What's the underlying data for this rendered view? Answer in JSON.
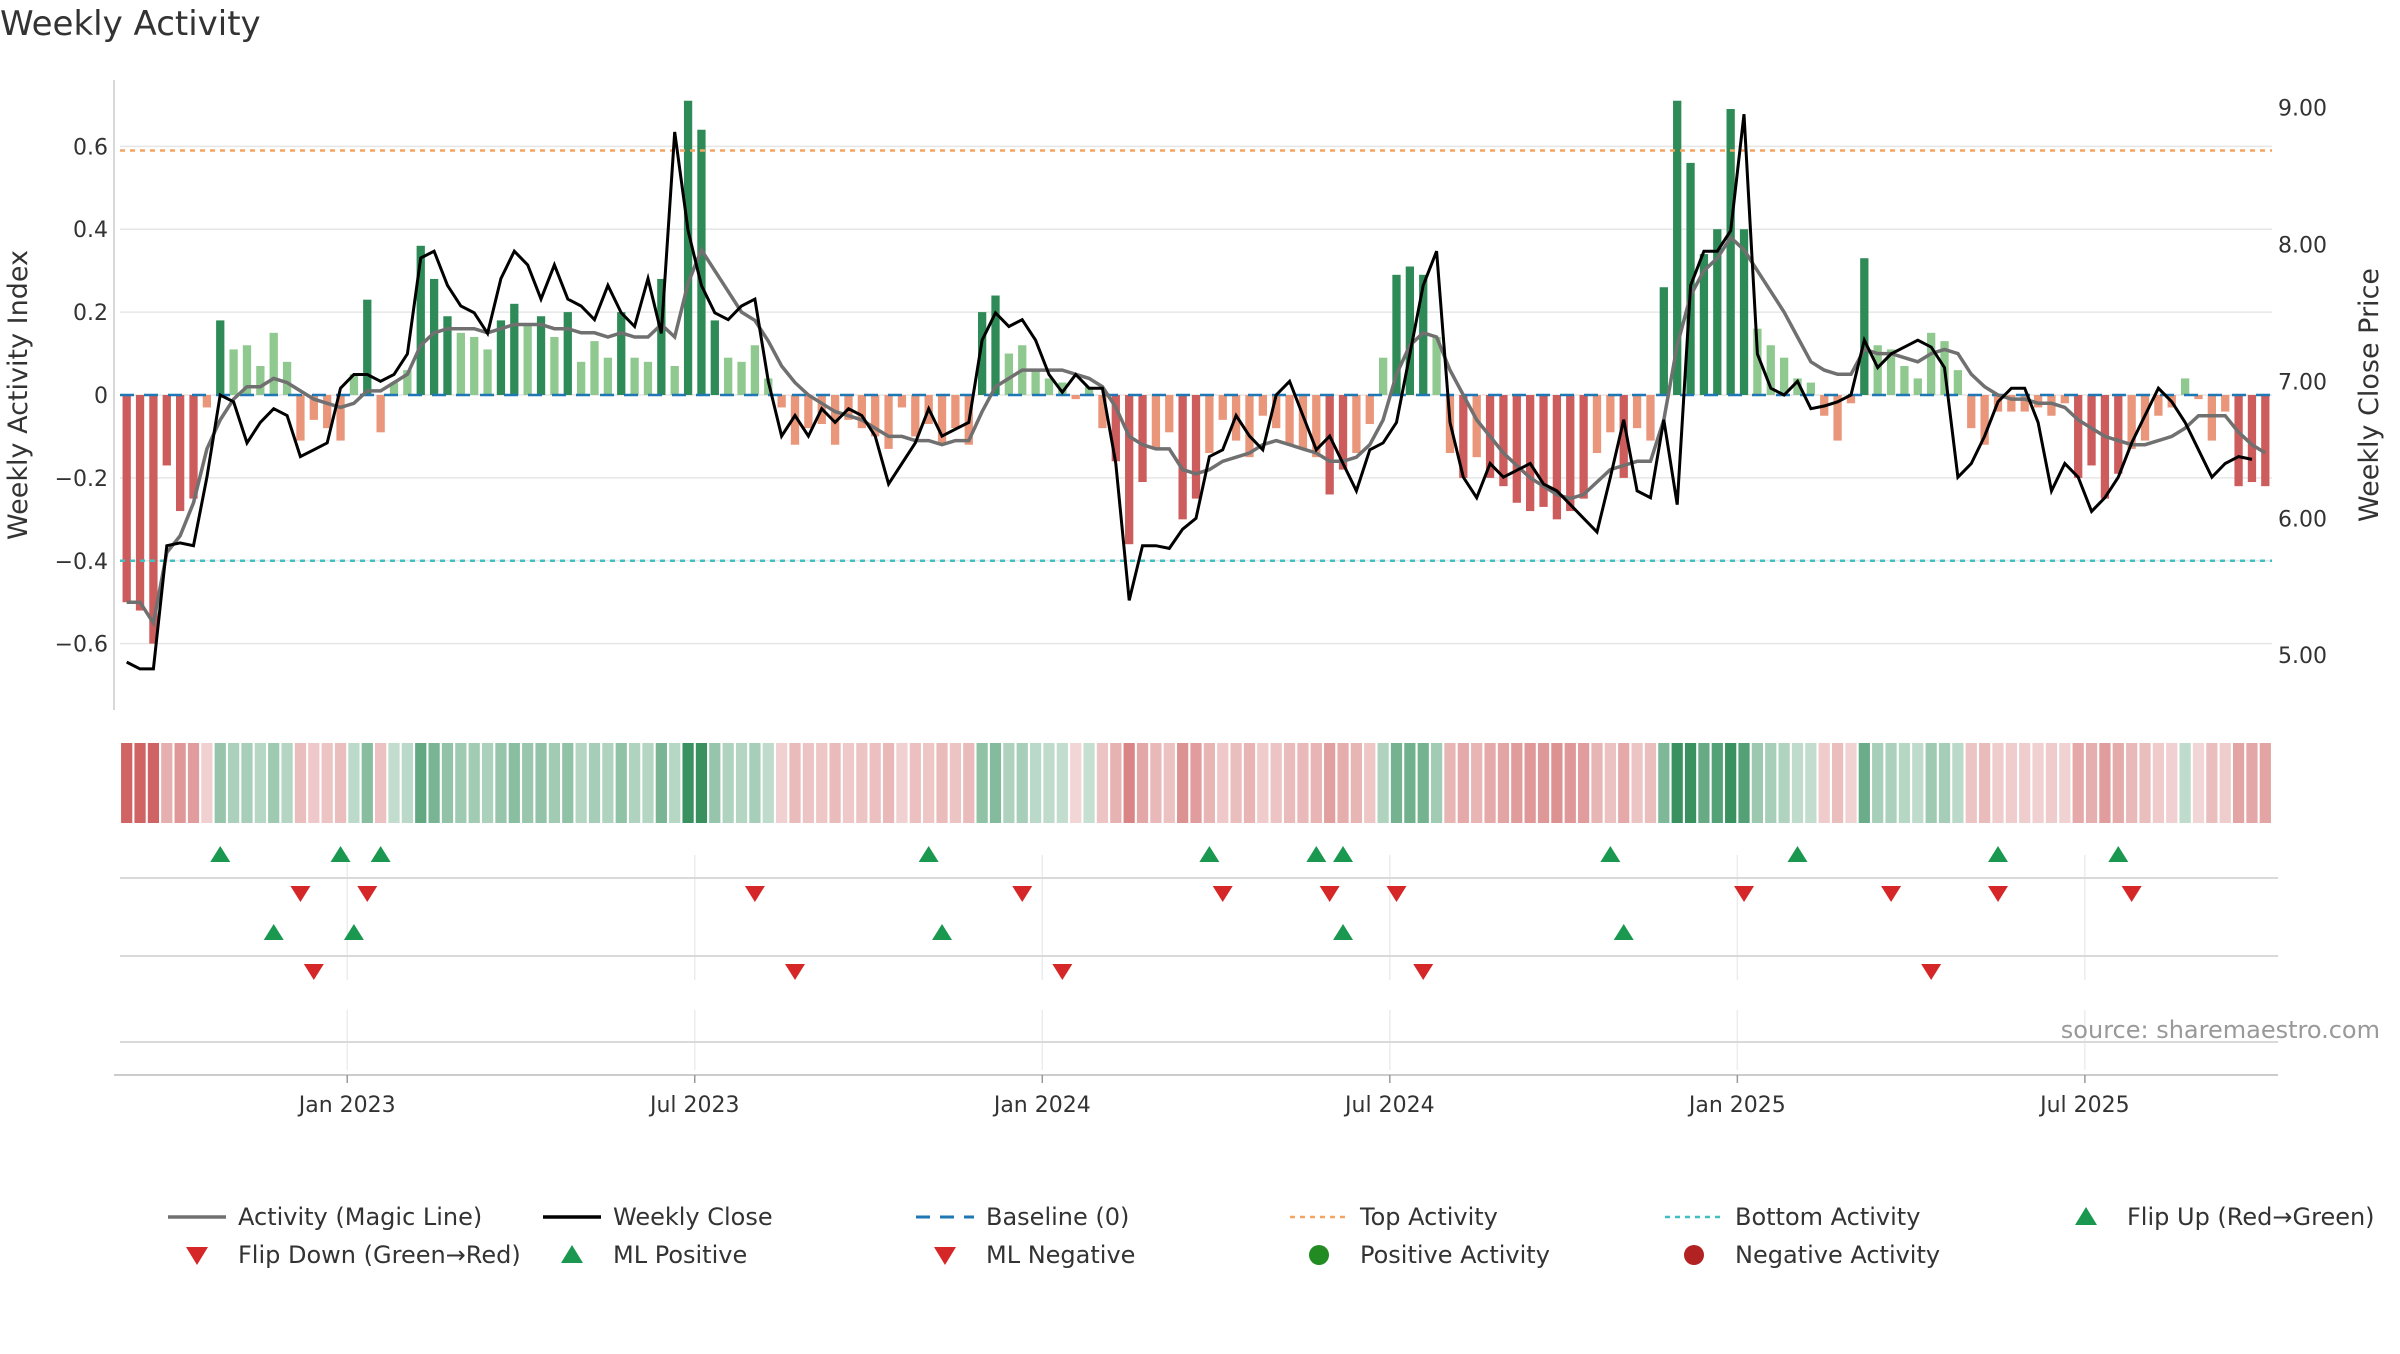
{
  "chart_data": {
    "type": "bar",
    "title": "Weekly Activity",
    "ylabel_left": "Weekly Activity Index",
    "ylabel_right": "Weekly Close Price",
    "source": "source: sharemaestro.com",
    "ylim_left": [
      -0.76,
      0.76
    ],
    "ylim_right": [
      4.6,
      9.2
    ],
    "left_ticks": [
      {
        "v": 0.6,
        "label": "0.6"
      },
      {
        "v": 0.4,
        "label": "0.4"
      },
      {
        "v": 0.2,
        "label": "0.2"
      },
      {
        "v": 0,
        "label": "0"
      },
      {
        "v": -0.2,
        "label": "−0.2"
      },
      {
        "v": -0.4,
        "label": "−0.4"
      },
      {
        "v": -0.6,
        "label": "−0.6"
      }
    ],
    "right_ticks": [
      {
        "v": 9,
        "label": "9.00"
      },
      {
        "v": 8,
        "label": "8.00"
      },
      {
        "v": 7,
        "label": "7.00"
      },
      {
        "v": 6,
        "label": "6.00"
      },
      {
        "v": 5,
        "label": "5.00"
      }
    ],
    "x_ticks": [
      {
        "label": "Jan 2023",
        "week": 17
      },
      {
        "label": "Jul 2023",
        "week": 43
      },
      {
        "label": "Jan 2024",
        "week": 69
      },
      {
        "label": "Jul 2024",
        "week": 95
      },
      {
        "label": "Jan 2025",
        "week": 121
      },
      {
        "label": "Jul 2025",
        "week": 147
      }
    ],
    "top_activity": 0.59,
    "bottom_activity": -0.4,
    "activity": [
      -0.5,
      -0.52,
      -0.6,
      -0.17,
      -0.28,
      -0.25,
      -0.03,
      0.18,
      0.11,
      0.12,
      0.07,
      0.15,
      0.08,
      -0.11,
      -0.06,
      -0.08,
      -0.11,
      0.05,
      0.23,
      -0.09,
      0.03,
      0.06,
      0.36,
      0.28,
      0.19,
      0.15,
      0.14,
      0.11,
      0.18,
      0.22,
      0.17,
      0.19,
      0.14,
      0.2,
      0.08,
      0.13,
      0.09,
      0.2,
      0.09,
      0.08,
      0.28,
      0.07,
      0.71,
      0.64,
      0.18,
      0.09,
      0.08,
      0.12,
      0.04,
      -0.03,
      -0.12,
      -0.08,
      -0.07,
      -0.12,
      -0.06,
      -0.08,
      -0.1,
      -0.13,
      -0.03,
      -0.1,
      -0.07,
      -0.12,
      -0.08,
      -0.12,
      0.2,
      0.24,
      0.1,
      0.12,
      0.06,
      0.04,
      0.03,
      -0.01,
      0.02,
      -0.08,
      -0.16,
      -0.36,
      -0.21,
      -0.13,
      -0.09,
      -0.3,
      -0.25,
      -0.14,
      -0.06,
      -0.11,
      -0.15,
      -0.05,
      -0.08,
      -0.12,
      -0.13,
      -0.15,
      -0.24,
      -0.18,
      -0.14,
      -0.07,
      0.09,
      0.29,
      0.31,
      0.29,
      0.14,
      -0.14,
      -0.2,
      -0.15,
      -0.2,
      -0.22,
      -0.26,
      -0.28,
      -0.27,
      -0.3,
      -0.28,
      -0.25,
      -0.14,
      -0.09,
      -0.2,
      -0.08,
      -0.11,
      0.26,
      0.71,
      0.56,
      0.34,
      0.4,
      0.69,
      0.4,
      0.16,
      0.12,
      0.09,
      0.04,
      0.03,
      -0.05,
      -0.11,
      -0.02,
      0.33,
      0.12,
      0.11,
      0.07,
      0.04,
      0.15,
      0.13,
      0.06,
      -0.08,
      -0.12,
      -0.04,
      -0.04,
      -0.04,
      -0.03,
      -0.05,
      -0.02,
      -0.2,
      -0.17,
      -0.25,
      -0.19,
      -0.13,
      -0.11,
      -0.05,
      -0.03,
      0.04,
      -0.01,
      -0.11,
      -0.04,
      -0.22,
      -0.21,
      -0.22
    ],
    "magic_line": [
      -0.5,
      -0.5,
      -0.55,
      -0.38,
      -0.34,
      -0.26,
      -0.13,
      -0.06,
      -0.01,
      0.02,
      0.02,
      0.04,
      0.03,
      0.01,
      -0.01,
      -0.02,
      -0.03,
      -0.02,
      0.01,
      0.01,
      0.03,
      0.05,
      0.12,
      0.15,
      0.16,
      0.16,
      0.16,
      0.15,
      0.16,
      0.17,
      0.17,
      0.17,
      0.16,
      0.16,
      0.15,
      0.15,
      0.14,
      0.15,
      0.14,
      0.14,
      0.17,
      0.14,
      0.27,
      0.35,
      0.3,
      0.25,
      0.2,
      0.18,
      0.13,
      0.07,
      0.03,
      0.0,
      -0.02,
      -0.04,
      -0.05,
      -0.06,
      -0.08,
      -0.1,
      -0.1,
      -0.11,
      -0.11,
      -0.12,
      -0.11,
      -0.11,
      -0.04,
      0.02,
      0.04,
      0.06,
      0.06,
      0.06,
      0.06,
      0.05,
      0.04,
      0.02,
      -0.03,
      -0.1,
      -0.12,
      -0.13,
      -0.13,
      -0.18,
      -0.19,
      -0.18,
      -0.16,
      -0.15,
      -0.14,
      -0.12,
      -0.11,
      -0.12,
      -0.13,
      -0.14,
      -0.16,
      -0.16,
      -0.15,
      -0.12,
      -0.06,
      0.05,
      0.12,
      0.15,
      0.14,
      0.06,
      0.0,
      -0.06,
      -0.1,
      -0.14,
      -0.17,
      -0.2,
      -0.22,
      -0.24,
      -0.25,
      -0.24,
      -0.21,
      -0.18,
      -0.17,
      -0.16,
      -0.16,
      -0.06,
      0.12,
      0.24,
      0.3,
      0.33,
      0.38,
      0.35,
      0.3,
      0.25,
      0.2,
      0.14,
      0.08,
      0.06,
      0.05,
      0.05,
      0.11,
      0.1,
      0.1,
      0.09,
      0.08,
      0.1,
      0.11,
      0.1,
      0.05,
      0.02,
      0.0,
      -0.01,
      -0.01,
      -0.02,
      -0.02,
      -0.03,
      -0.06,
      -0.08,
      -0.1,
      -0.11,
      -0.12,
      -0.12,
      -0.11,
      -0.1,
      -0.08,
      -0.05,
      -0.05,
      -0.05,
      -0.09,
      -0.12,
      -0.14
    ],
    "weekly_close": [
      4.95,
      4.9,
      4.9,
      5.8,
      5.82,
      5.8,
      6.3,
      6.9,
      6.85,
      6.55,
      6.7,
      6.8,
      6.75,
      6.45,
      6.5,
      6.55,
      6.95,
      7.05,
      7.05,
      7.0,
      7.05,
      7.2,
      7.9,
      7.95,
      7.7,
      7.55,
      7.5,
      7.35,
      7.75,
      7.95,
      7.85,
      7.6,
      7.85,
      7.6,
      7.55,
      7.45,
      7.7,
      7.5,
      7.4,
      7.75,
      7.35,
      8.82,
      8.1,
      7.7,
      7.5,
      7.45,
      7.55,
      7.6,
      7.0,
      6.6,
      6.75,
      6.6,
      6.8,
      6.7,
      6.8,
      6.75,
      6.6,
      6.25,
      6.4,
      6.55,
      6.8,
      6.6,
      6.65,
      6.7,
      7.3,
      7.5,
      7.4,
      7.45,
      7.3,
      7.05,
      6.92,
      7.05,
      6.95,
      6.95,
      6.4,
      5.4,
      5.8,
      5.8,
      5.78,
      5.92,
      6.0,
      6.45,
      6.5,
      6.75,
      6.6,
      6.5,
      6.9,
      7.0,
      6.75,
      6.5,
      6.6,
      6.4,
      6.2,
      6.5,
      6.55,
      6.7,
      7.2,
      7.7,
      7.95,
      6.7,
      6.3,
      6.15,
      6.4,
      6.3,
      6.35,
      6.4,
      6.25,
      6.2,
      6.1,
      6.0,
      5.9,
      6.3,
      6.72,
      6.2,
      6.15,
      6.72,
      6.1,
      7.7,
      7.95,
      7.95,
      8.1,
      8.95,
      7.2,
      6.95,
      6.9,
      7.0,
      6.8,
      6.82,
      6.85,
      6.9,
      7.3,
      7.1,
      7.2,
      7.25,
      7.3,
      7.25,
      7.1,
      6.3,
      6.4,
      6.6,
      6.85,
      6.95,
      6.95,
      6.7,
      6.2,
      6.4,
      6.3,
      6.05,
      6.15,
      6.3,
      6.55,
      6.75,
      6.95,
      6.85,
      6.7,
      6.5,
      6.3,
      6.4,
      6.45,
      6.43
    ],
    "flip_up_weeks": [
      7,
      16,
      19,
      60,
      81,
      89,
      91,
      111,
      125,
      140,
      149
    ],
    "flip_down_weeks": [
      13,
      18,
      47,
      67,
      82,
      90,
      95,
      121,
      132,
      140,
      150
    ],
    "ml_positive_weeks": [
      11,
      17,
      61,
      91,
      112
    ],
    "ml_negative_weeks": [
      14,
      50,
      70,
      97,
      135
    ],
    "legend": [
      {
        "kind": "line-grey",
        "label": "Activity (Magic Line)"
      },
      {
        "kind": "line-black",
        "label": "Weekly Close"
      },
      {
        "kind": "dash-blue",
        "label": "Baseline (0)"
      },
      {
        "kind": "dot-orange",
        "label": "Top Activity"
      },
      {
        "kind": "dot-cyan",
        "label": "Bottom Activity"
      },
      {
        "kind": "tri-up",
        "label": "Flip Up (Red→Green)"
      },
      {
        "kind": "tri-down",
        "label": "Flip Down (Green→Red)"
      },
      {
        "kind": "tri-up",
        "label": "ML Positive"
      },
      {
        "kind": "tri-down",
        "label": "ML Negative"
      },
      {
        "kind": "dot-green",
        "label": "Positive Activity"
      },
      {
        "kind": "dot-red",
        "label": "Negative Activity"
      }
    ],
    "colors": {
      "pos_strong": "#2e8b57",
      "pos_light": "#8fc98f",
      "neg_strong": "#cd5c5c",
      "neg_light": "#e9967a",
      "magic": "#707070",
      "close": "#000000",
      "baseline": "#1f77b4",
      "top": "#f4a460",
      "bottom": "#40c0c0",
      "tri_up": "#1a9850",
      "tri_down": "#d62728",
      "grid": "#e6e6e6"
    }
  }
}
